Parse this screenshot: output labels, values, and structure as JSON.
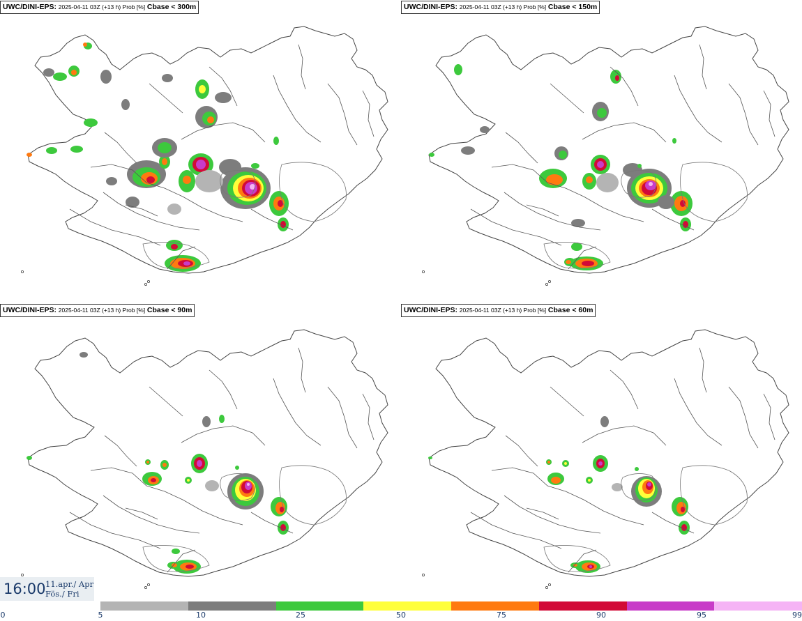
{
  "panels": [
    {
      "model": "UWC/DINI-EPS",
      "meta": "2025-04-11 03Z (+13 h) Prob [%]",
      "param": "Cbase < 300m"
    },
    {
      "model": "UWC/DINI-EPS",
      "meta": "2025-04-11 03Z (+13 h) Prob [%]",
      "param": "Cbase < 150m"
    },
    {
      "model": "UWC/DINI-EPS",
      "meta": "2025-04-11 03Z (+13 h) Prob [%]",
      "param": "Cbase < 90m"
    },
    {
      "model": "UWC/DINI-EPS",
      "meta": "2025-04-11 03Z (+13 h) Prob [%]",
      "param": "Cbase < 60m"
    }
  ],
  "valid_time": {
    "time": "16:00",
    "date_line1": "11.apr./ Apr",
    "date_line2": "Fös./ Fri"
  },
  "colorbar": {
    "labels": [
      "0",
      "5",
      "10",
      "25",
      "50",
      "75",
      "90",
      "95",
      "99"
    ],
    "colors": [
      "#b4b4b4",
      "#7d7d7d",
      "#3dc93d",
      "#ffff3a",
      "#ff7a10",
      "#d20a37",
      "#c83cc8",
      "#f5b4f5"
    ]
  },
  "legend_colors": {
    "gray_light": "#b4b4b4",
    "gray_dark": "#7d7d7d",
    "green": "#3dc93d",
    "yellow": "#ffff3a",
    "orange": "#ff7a10",
    "red": "#d20a37",
    "magenta": "#c83cc8",
    "pink": "#f5b4f5"
  }
}
